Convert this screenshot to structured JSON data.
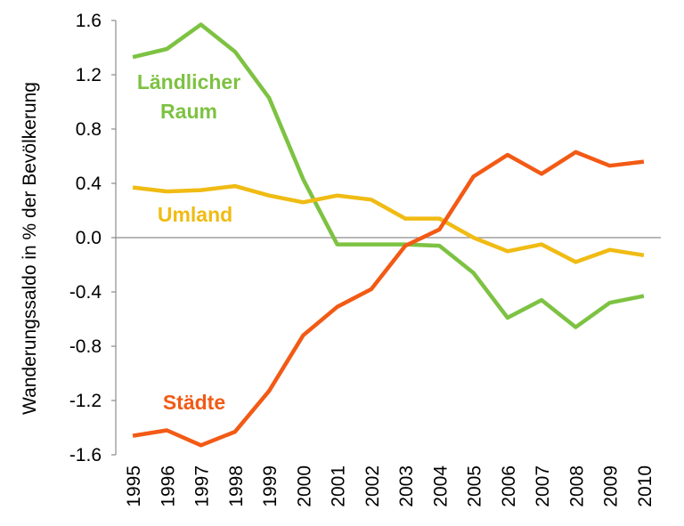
{
  "chart_data": {
    "type": "line",
    "ylabel": "Wanderungssaldo in % der Bevölkerung",
    "xlabel": "",
    "ylim": [
      -1.6,
      1.6
    ],
    "yticks": [
      "1.6",
      "1.2",
      "0.8",
      "0.4",
      "0.0",
      "-0.4",
      "-0.8",
      "-1.2",
      "-1.6"
    ],
    "ytick_values": [
      1.6,
      1.2,
      0.8,
      0.4,
      0.0,
      -0.4,
      -0.8,
      -1.2,
      -1.6
    ],
    "categories": [
      "1995",
      "1996",
      "1997",
      "1998",
      "1999",
      "2000",
      "2001",
      "2002",
      "2003",
      "2004",
      "2005",
      "2006",
      "2007",
      "2008",
      "2009",
      "2010"
    ],
    "grid": false,
    "legend": "inline labels",
    "series": [
      {
        "name": "Ländlicher Raum",
        "label_lines": [
          "Ländlicher",
          "Raum"
        ],
        "color": "#7dc242",
        "values": [
          1.33,
          1.39,
          1.57,
          1.37,
          1.03,
          0.43,
          -0.05,
          -0.05,
          -0.05,
          -0.06,
          -0.26,
          -0.59,
          -0.46,
          -0.66,
          -0.48,
          -0.43
        ]
      },
      {
        "name": "Umland",
        "label_lines": [
          "Umland"
        ],
        "color": "#f0bb13",
        "values": [
          0.37,
          0.34,
          0.35,
          0.38,
          0.31,
          0.26,
          0.31,
          0.28,
          0.14,
          0.14,
          0.0,
          -0.1,
          -0.05,
          -0.18,
          -0.09,
          -0.13
        ]
      },
      {
        "name": "Städte",
        "label_lines": [
          "Städte"
        ],
        "color": "#f25a15",
        "values": [
          -1.46,
          -1.42,
          -1.53,
          -1.43,
          -1.13,
          -0.72,
          -0.51,
          -0.38,
          -0.06,
          0.06,
          0.45,
          0.61,
          0.47,
          0.63,
          0.53,
          0.56
        ]
      }
    ]
  }
}
